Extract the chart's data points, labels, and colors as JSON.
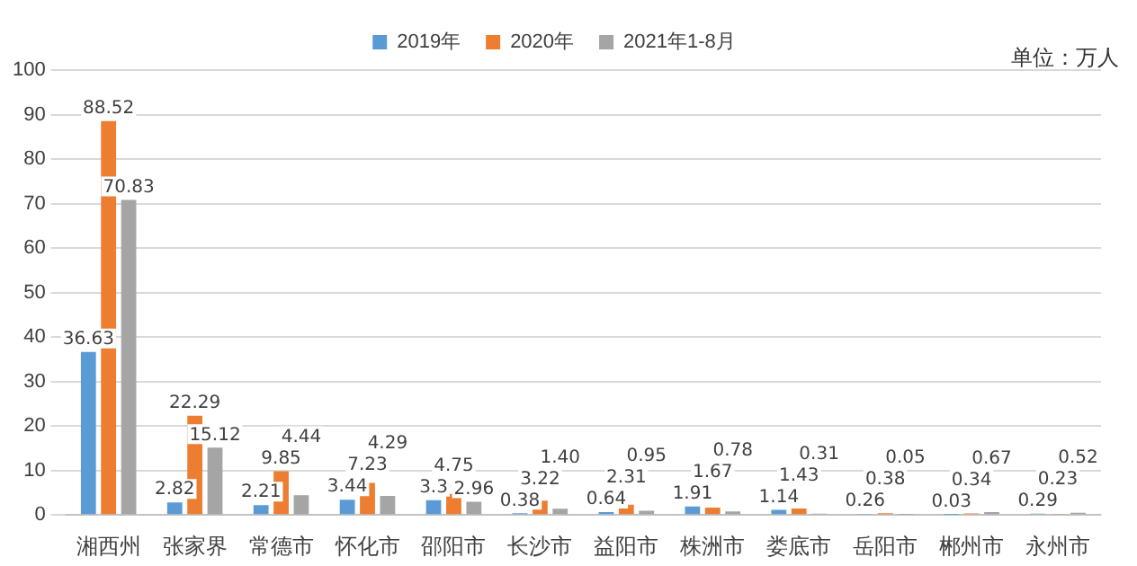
{
  "chart_data": {
    "type": "bar",
    "categories": [
      "湘西州",
      "张家界",
      "常德市",
      "怀化市",
      "邵阳市",
      "长沙市",
      "益阳市",
      "株洲市",
      "娄底市",
      "岳阳市",
      "郴州市",
      "永州市"
    ],
    "series": [
      {
        "name": "2019年",
        "color": "#5b9bd5",
        "values": [
          36.63,
          2.82,
          2.21,
          3.44,
          3.3,
          0.38,
          0.64,
          1.91,
          1.14,
          0.26,
          0.03,
          0.29
        ],
        "value_labels": [
          "36.63",
          "2.82",
          "2.21",
          "3.44",
          "3.3",
          "0.38",
          "0.64",
          "1.91",
          "1.14",
          "0.26",
          "0.03",
          "0.29"
        ]
      },
      {
        "name": "2020年",
        "color": "#ed7d31",
        "values": [
          88.52,
          22.29,
          9.85,
          7.23,
          4.75,
          3.22,
          2.31,
          1.67,
          1.43,
          0.38,
          0.34,
          0.23
        ],
        "value_labels": [
          "88.52",
          "22.29",
          "9.85",
          "7.23",
          "4.75",
          "3.22",
          "2.31",
          "1.67",
          "1.43",
          "0.38",
          "0.34",
          "0.23"
        ]
      },
      {
        "name": "2021年1-8月",
        "color": "#a5a5a5",
        "values": [
          70.83,
          15.12,
          4.44,
          4.29,
          2.96,
          1.4,
          0.95,
          0.78,
          0.31,
          0.05,
          0.67,
          0.52
        ],
        "value_labels": [
          "70.83",
          "15.12",
          "4.44",
          "4.29",
          "2.96",
          "1.40",
          "0.95",
          "0.78",
          "0.31",
          "0.05",
          "0.67",
          "0.52"
        ]
      }
    ],
    "ylim": [
      0,
      100
    ],
    "yticks": [
      0,
      10,
      20,
      30,
      40,
      50,
      60,
      70,
      80,
      90,
      100
    ],
    "grid": "y",
    "legend": "top right",
    "annotations": [
      "单位：万人"
    ]
  }
}
